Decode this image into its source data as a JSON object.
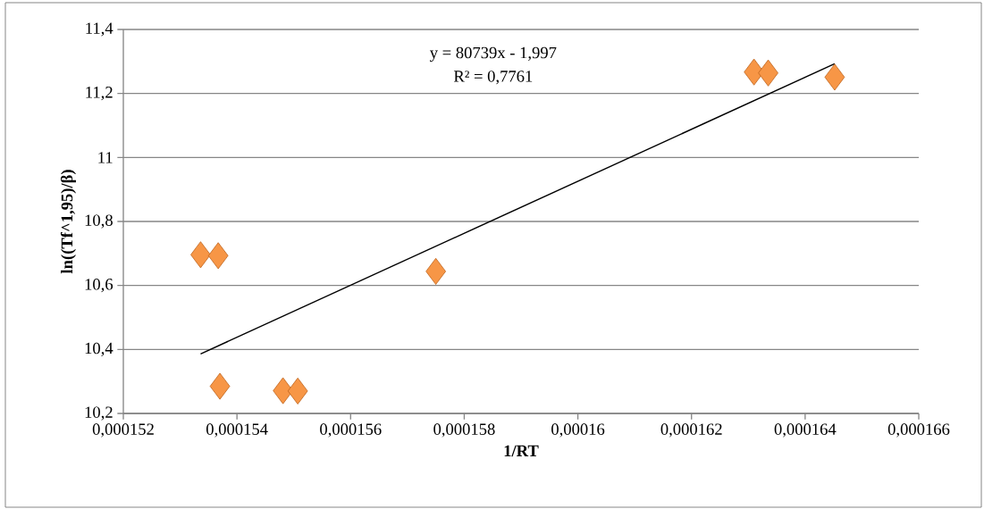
{
  "chart_data": {
    "type": "scatter",
    "xlabel": "1/RT",
    "ylabel": "ln((Tf^1,95)/β)",
    "annotations": [
      "y = 80739x - 1,997",
      "R² = 0,7761"
    ],
    "series": [
      {
        "color": "#f79646",
        "marker": "diamond",
        "x": [
          0.00015336,
          0.00015367,
          0.0001537,
          0.00015481,
          0.00015507,
          0.0001575,
          0.0001631,
          0.00016335,
          0.00016452
        ],
        "values": [
          10.696,
          10.693,
          10.285,
          10.271,
          10.27,
          10.644,
          11.267,
          11.264,
          11.251
        ]
      },
      {
        "type": "line",
        "color": "#000000",
        "marker": "none",
        "x": [
          0.00015336,
          0.00016452
        ],
        "values": [
          10.386,
          11.293
        ]
      }
    ],
    "xlim": [
      0.000152,
      0.000166
    ],
    "xticks": [
      {
        "value": 0.000152,
        "label": "0,000152"
      },
      {
        "value": 0.000154,
        "label": "0,000154"
      },
      {
        "value": 0.000156,
        "label": "0,000156"
      },
      {
        "value": 0.000158,
        "label": "0,000158"
      },
      {
        "value": 0.00016,
        "label": "0,00016"
      },
      {
        "value": 0.000162,
        "label": "0,000162"
      },
      {
        "value": 0.000164,
        "label": "0,000164"
      },
      {
        "value": 0.000166,
        "label": "0,000166"
      }
    ],
    "ylim": [
      10.2,
      11.4
    ],
    "yticks": [
      {
        "value": 10.2,
        "label": "10,2"
      },
      {
        "value": 10.4,
        "label": "10,4"
      },
      {
        "value": 10.6,
        "label": "10,6"
      },
      {
        "value": 10.8,
        "label": "10,8"
      },
      11,
      {
        "value": 11.2,
        "label": "11,2"
      },
      {
        "value": 11.4,
        "label": "11,4"
      }
    ],
    "grid": "y"
  }
}
